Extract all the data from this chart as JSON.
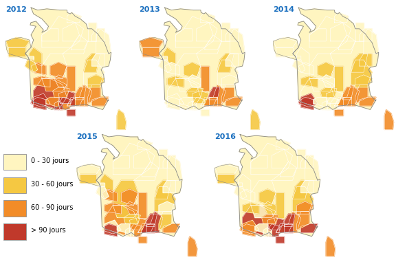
{
  "years": [
    "2012",
    "2013",
    "2014",
    "2015",
    "2016"
  ],
  "legend_labels": [
    "0 - 30 jours",
    "30 - 60 jours",
    "60 - 90 jours",
    "> 90 jours"
  ],
  "legend_colors": [
    "#FFF5C0",
    "#F5C842",
    "#F28C28",
    "#C0392B"
  ],
  "year_color": "#1A6FBF",
  "background_color": "#FFFFFF",
  "figsize": [
    6.08,
    3.84
  ],
  "dpi": 100
}
